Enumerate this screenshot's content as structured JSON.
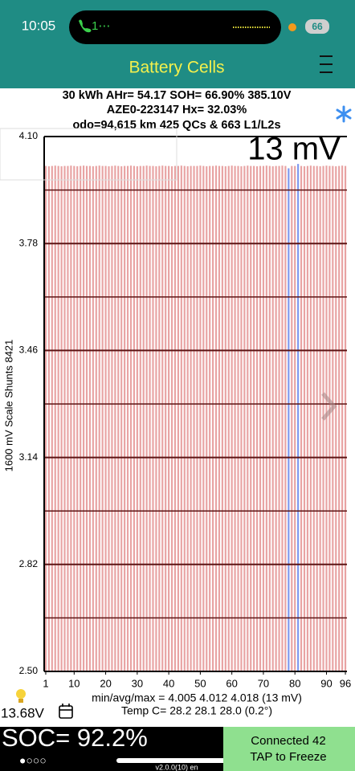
{
  "status_bar": {
    "time": "10:05",
    "call": "1⋯",
    "battery": "66"
  },
  "header": {
    "title": "Battery Cells",
    "lines": [
      "30 kWh  AHr= 54.17  SOH= 66.90%   385.10V",
      "AZE0-223147   Hx= 32.03%",
      "odo=94,615 km 425 QCs & 663 L1/L2s"
    ]
  },
  "chart_data": {
    "type": "bar",
    "y_label": "1600 mV Scale   Shunts 8421",
    "spread_label": "13 mV",
    "x": [
      1,
      2,
      3,
      4,
      5,
      6,
      7,
      8,
      9,
      10,
      11,
      12,
      13,
      14,
      15,
      16,
      17,
      18,
      19,
      20,
      21,
      22,
      23,
      24,
      25,
      26,
      27,
      28,
      29,
      30,
      31,
      32,
      33,
      34,
      35,
      36,
      37,
      38,
      39,
      40,
      41,
      42,
      43,
      44,
      45,
      46,
      47,
      48,
      49,
      50,
      51,
      52,
      53,
      54,
      55,
      56,
      57,
      58,
      59,
      60,
      61,
      62,
      63,
      64,
      65,
      66,
      67,
      68,
      69,
      70,
      71,
      72,
      73,
      74,
      75,
      76,
      77,
      78,
      79,
      80,
      81,
      82,
      83,
      84,
      85,
      86,
      87,
      88,
      89,
      90,
      91,
      92,
      93,
      94,
      95,
      96
    ],
    "values": [
      4.012,
      4.011,
      4.012,
      4.013,
      4.012,
      4.011,
      4.012,
      4.012,
      4.013,
      4.012,
      4.011,
      4.012,
      4.013,
      4.012,
      4.012,
      4.011,
      4.012,
      4.013,
      4.012,
      4.012,
      4.011,
      4.012,
      4.013,
      4.012,
      4.011,
      4.012,
      4.012,
      4.013,
      4.012,
      4.011,
      4.012,
      4.012,
      4.013,
      4.012,
      4.012,
      4.011,
      4.012,
      4.013,
      4.012,
      4.012,
      4.011,
      4.012,
      4.012,
      4.013,
      4.012,
      4.011,
      4.012,
      4.012,
      4.012,
      4.013,
      4.012,
      4.011,
      4.012,
      4.012,
      4.013,
      4.012,
      4.012,
      4.011,
      4.012,
      4.013,
      4.012,
      4.012,
      4.011,
      4.012,
      4.013,
      4.012,
      4.012,
      4.011,
      4.012,
      4.012,
      4.013,
      4.012,
      4.011,
      4.012,
      4.012,
      4.013,
      4.012,
      4.005,
      4.012,
      4.012,
      4.018,
      4.012,
      4.011,
      4.012,
      4.013,
      4.012,
      4.012,
      4.011,
      4.012,
      4.013,
      4.012,
      4.012,
      4.011,
      4.012,
      4.013,
      4.012
    ],
    "color": "#e8a3a3",
    "highlight": {
      "x": [
        78,
        81
      ],
      "color": "#7e97ee"
    },
    "xlim": [
      0.5,
      96.5
    ],
    "xticks": [
      1,
      10,
      20,
      30,
      40,
      50,
      60,
      70,
      80,
      90,
      96
    ],
    "ylim": [
      2.5,
      4.1
    ],
    "yticks": [
      {
        "value": 4.1,
        "label": "4.10"
      },
      3.78,
      3.46,
      3.14,
      2.82,
      {
        "value": 2.5,
        "label": "2.50"
      }
    ],
    "minor_grid": [
      3.94,
      3.62,
      3.3,
      2.98,
      2.66
    ],
    "grid_color": "#5c1414"
  },
  "footer": {
    "stats": "min/avg/max = 4.005 4.012 4.018  (13 mV)",
    "temp": "Temp C= 28.2  28.1  28.0  (0.2°)",
    "pack_voltage": "13.68V",
    "soc": "SOC= 92.2%",
    "pages": "●○○○",
    "version": "v2.0.0(10) en",
    "connection": [
      "Connected 42",
      "TAP to Freeze"
    ]
  }
}
